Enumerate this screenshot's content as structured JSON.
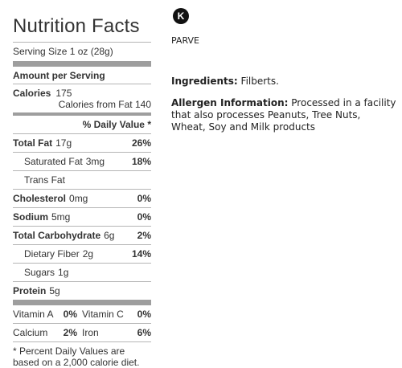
{
  "nutrition": {
    "title": "Nutrition Facts",
    "serving_size": "Serving Size 1 oz (28g)",
    "amount_per_serving": "Amount per Serving",
    "calories_label": "Calories",
    "calories_value": "175",
    "calories_from_fat": "Calories from Fat 140",
    "daily_value_header": "% Daily Value *",
    "rows": [
      {
        "label": "Total Fat",
        "amount": "17g",
        "dv": "26%",
        "bold": true,
        "indent": false
      },
      {
        "label": "Saturated Fat",
        "amount": "3mg",
        "dv": "18%",
        "bold": false,
        "indent": true
      },
      {
        "label": "Trans Fat",
        "amount": "",
        "dv": "",
        "bold": false,
        "indent": true
      },
      {
        "label": "Cholesterol",
        "amount": "0mg",
        "dv": "0%",
        "bold": true,
        "indent": false
      },
      {
        "label": "Sodium",
        "amount": "5mg",
        "dv": "0%",
        "bold": true,
        "indent": false
      },
      {
        "label": "Total Carbohydrate",
        "amount": "6g",
        "dv": "2%",
        "bold": true,
        "indent": false
      },
      {
        "label": "Dietary Fiber",
        "amount": "2g",
        "dv": "14%",
        "bold": false,
        "indent": true
      },
      {
        "label": "Sugars",
        "amount": "1g",
        "dv": "",
        "bold": false,
        "indent": true
      },
      {
        "label": "Protein",
        "amount": "5g",
        "dv": "",
        "bold": true,
        "indent": false
      }
    ],
    "vitamins": [
      [
        {
          "name": "Vitamin A",
          "dv": "0%"
        },
        {
          "name": "Vitamin C",
          "dv": "0%"
        }
      ],
      [
        {
          "name": "Calcium",
          "dv": "2%"
        },
        {
          "name": "Iron",
          "dv": "6%"
        }
      ]
    ],
    "footnote": "* Percent Daily Values are based on a 2,000 calorie diet."
  },
  "kosher": {
    "symbol": "K",
    "label": "PARVE"
  },
  "ingredients": {
    "label": "Ingredients:",
    "text": "Filberts."
  },
  "allergen": {
    "label": "Allergen Information:",
    "text": "Processed in a facility that also processes Peanuts, Tree Nuts, Wheat, Soy and Milk products"
  }
}
